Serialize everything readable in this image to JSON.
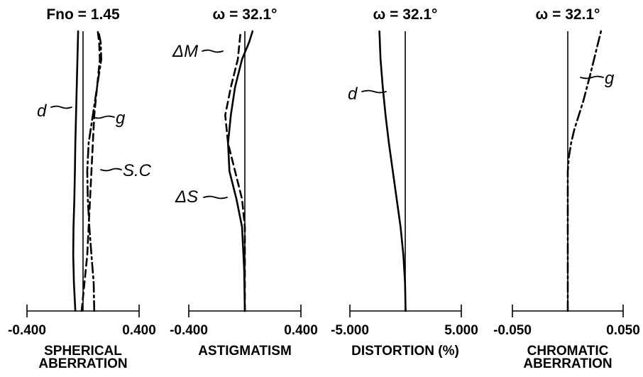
{
  "chart_data": [
    {
      "type": "line",
      "title": "Fno = 1.45",
      "xlabel": [
        "SPHERICAL",
        "ABERRATION"
      ],
      "ylabel": "",
      "xlim": [
        -0.4,
        0.4
      ],
      "ylim": [
        0,
        1
      ],
      "x_tick_labels": [
        "-0.400",
        "0.400"
      ],
      "series": [
        {
          "name": "d",
          "style": "solid",
          "x": [
            -0.055,
            -0.065,
            -0.07,
            -0.068,
            -0.062,
            -0.058,
            -0.055,
            -0.05,
            -0.045,
            -0.04,
            -0.035
          ],
          "y": [
            0.0,
            0.1,
            0.2,
            0.3,
            0.4,
            0.5,
            0.6,
            0.7,
            0.8,
            0.9,
            1.0
          ]
        },
        {
          "name": "g",
          "style": "dashdot",
          "x": [
            0.08,
            0.076,
            0.06,
            0.045,
            0.034,
            0.03,
            0.04,
            0.07,
            0.1,
            0.13,
            0.126,
            0.11
          ],
          "y": [
            0.0,
            0.1,
            0.2,
            0.3,
            0.4,
            0.5,
            0.6,
            0.7,
            0.8,
            0.9,
            0.96,
            1.0
          ]
        },
        {
          "name": "S.C",
          "style": "dashed",
          "x": [
            -0.01,
            0.01,
            0.03,
            0.04,
            0.05,
            0.06,
            0.07,
            0.08,
            0.1,
            0.12,
            0.115,
            0.105
          ],
          "y": [
            0.0,
            0.1,
            0.2,
            0.3,
            0.4,
            0.5,
            0.6,
            0.7,
            0.8,
            0.9,
            0.96,
            1.0
          ]
        }
      ]
    },
    {
      "type": "line",
      "title": "ω = 32.1°",
      "xlabel": "ASTIGMATISM",
      "ylabel": "",
      "xlim": [
        -0.4,
        0.4
      ],
      "ylim": [
        0,
        1
      ],
      "x_tick_labels": [
        "-0.400",
        "0.400"
      ],
      "series": [
        {
          "name": "ΔS",
          "style": "solid",
          "x": [
            0.0,
            -0.005,
            -0.02,
            -0.06,
            -0.11,
            -0.12,
            -0.1,
            -0.07,
            -0.02,
            0.03,
            0.055
          ],
          "y": [
            0.0,
            0.15,
            0.3,
            0.4,
            0.5,
            0.6,
            0.7,
            0.8,
            0.9,
            0.96,
            1.0
          ]
        },
        {
          "name": "ΔM",
          "style": "dashed",
          "x": [
            0.0,
            0.0,
            0.0,
            0.0,
            -0.02,
            -0.07,
            -0.12,
            -0.14,
            -0.1,
            -0.05,
            -0.03
          ],
          "y": [
            0.0,
            0.1,
            0.2,
            0.3,
            0.4,
            0.5,
            0.6,
            0.7,
            0.8,
            0.9,
            1.0
          ]
        }
      ]
    },
    {
      "type": "line",
      "title": "ω = 32.1°",
      "xlabel": "DISTORTION (%)",
      "ylabel": "",
      "xlim": [
        -5.0,
        5.0
      ],
      "ylim": [
        0,
        1
      ],
      "x_tick_labels": [
        "-5.000",
        "5.000"
      ],
      "series": [
        {
          "name": "d",
          "style": "solid",
          "x": [
            0.0,
            -0.05,
            -0.2,
            -0.45,
            -0.8,
            -1.15,
            -1.5,
            -1.8,
            -2.05,
            -2.25,
            -2.35
          ],
          "y": [
            0.0,
            0.1,
            0.2,
            0.3,
            0.4,
            0.5,
            0.6,
            0.7,
            0.8,
            0.9,
            1.0
          ]
        }
      ]
    },
    {
      "type": "line",
      "title": "ω = 32.1°",
      "xlabel": [
        "CHROMATIC",
        "ABERRATION"
      ],
      "ylabel": "",
      "xlim": [
        -0.05,
        0.05
      ],
      "ylim": [
        0,
        1
      ],
      "x_tick_labels": [
        "-0.050",
        "0.050"
      ],
      "series": [
        {
          "name": "g",
          "style": "dashdot",
          "x": [
            0.0,
            0.0,
            0.0,
            0.0,
            0.0,
            0.0,
            0.001,
            0.003,
            0.006,
            0.01,
            0.014,
            0.02,
            0.025,
            0.03
          ],
          "y": [
            0.0,
            0.1,
            0.2,
            0.3,
            0.4,
            0.5,
            0.55,
            0.6,
            0.65,
            0.7,
            0.75,
            0.84,
            0.92,
            1.0
          ]
        }
      ]
    }
  ]
}
